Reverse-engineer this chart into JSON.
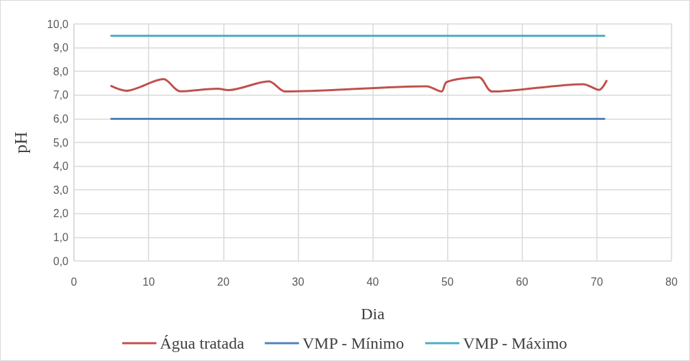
{
  "chart_data": {
    "type": "line",
    "xlabel": "Dia",
    "ylabel": "pH",
    "series": [
      {
        "name": "Água tratada",
        "color": "#c0504d",
        "x": [
          5,
          7,
          12,
          14.2,
          19.2,
          20.7,
          26.1,
          28.3,
          47.2,
          49.2,
          49.9,
          54.2,
          56,
          68.2,
          70.3,
          71.3
        ],
        "values": [
          7.38,
          7.18,
          7.67,
          7.16,
          7.27,
          7.21,
          7.58,
          7.15,
          7.37,
          7.15,
          7.55,
          7.75,
          7.15,
          7.46,
          7.22,
          7.6
        ]
      },
      {
        "name": "VMP - Mínimo",
        "color": "#4f81bd",
        "x": [
          5,
          71
        ],
        "values": [
          6.0,
          6.0
        ]
      },
      {
        "name": "VMP - Máximo",
        "color": "#4bacc6",
        "x": [
          5,
          71
        ],
        "values": [
          9.5,
          9.5
        ]
      }
    ],
    "xlim": [
      0,
      80
    ],
    "xticks": [
      0,
      10,
      20,
      30,
      40,
      50,
      60,
      70,
      80
    ],
    "ylim": [
      0,
      10
    ],
    "yticks": [
      {
        "value": 0,
        "label": "0,0"
      },
      {
        "value": 1,
        "label": "1,0"
      },
      {
        "value": 2,
        "label": "2,0"
      },
      {
        "value": 3,
        "label": "3,0"
      },
      {
        "value": 4,
        "label": "4,0"
      },
      {
        "value": 5,
        "label": "5,0"
      },
      {
        "value": 6,
        "label": "6,0"
      },
      {
        "value": 7,
        "label": "7,0"
      },
      {
        "value": 8,
        "label": "8,0"
      },
      {
        "value": 9,
        "label": "9,0"
      },
      {
        "value": 10,
        "label": "10,0"
      }
    ],
    "grid": true,
    "legend": "bottom",
    "marker": "none",
    "line_style": "solid"
  }
}
